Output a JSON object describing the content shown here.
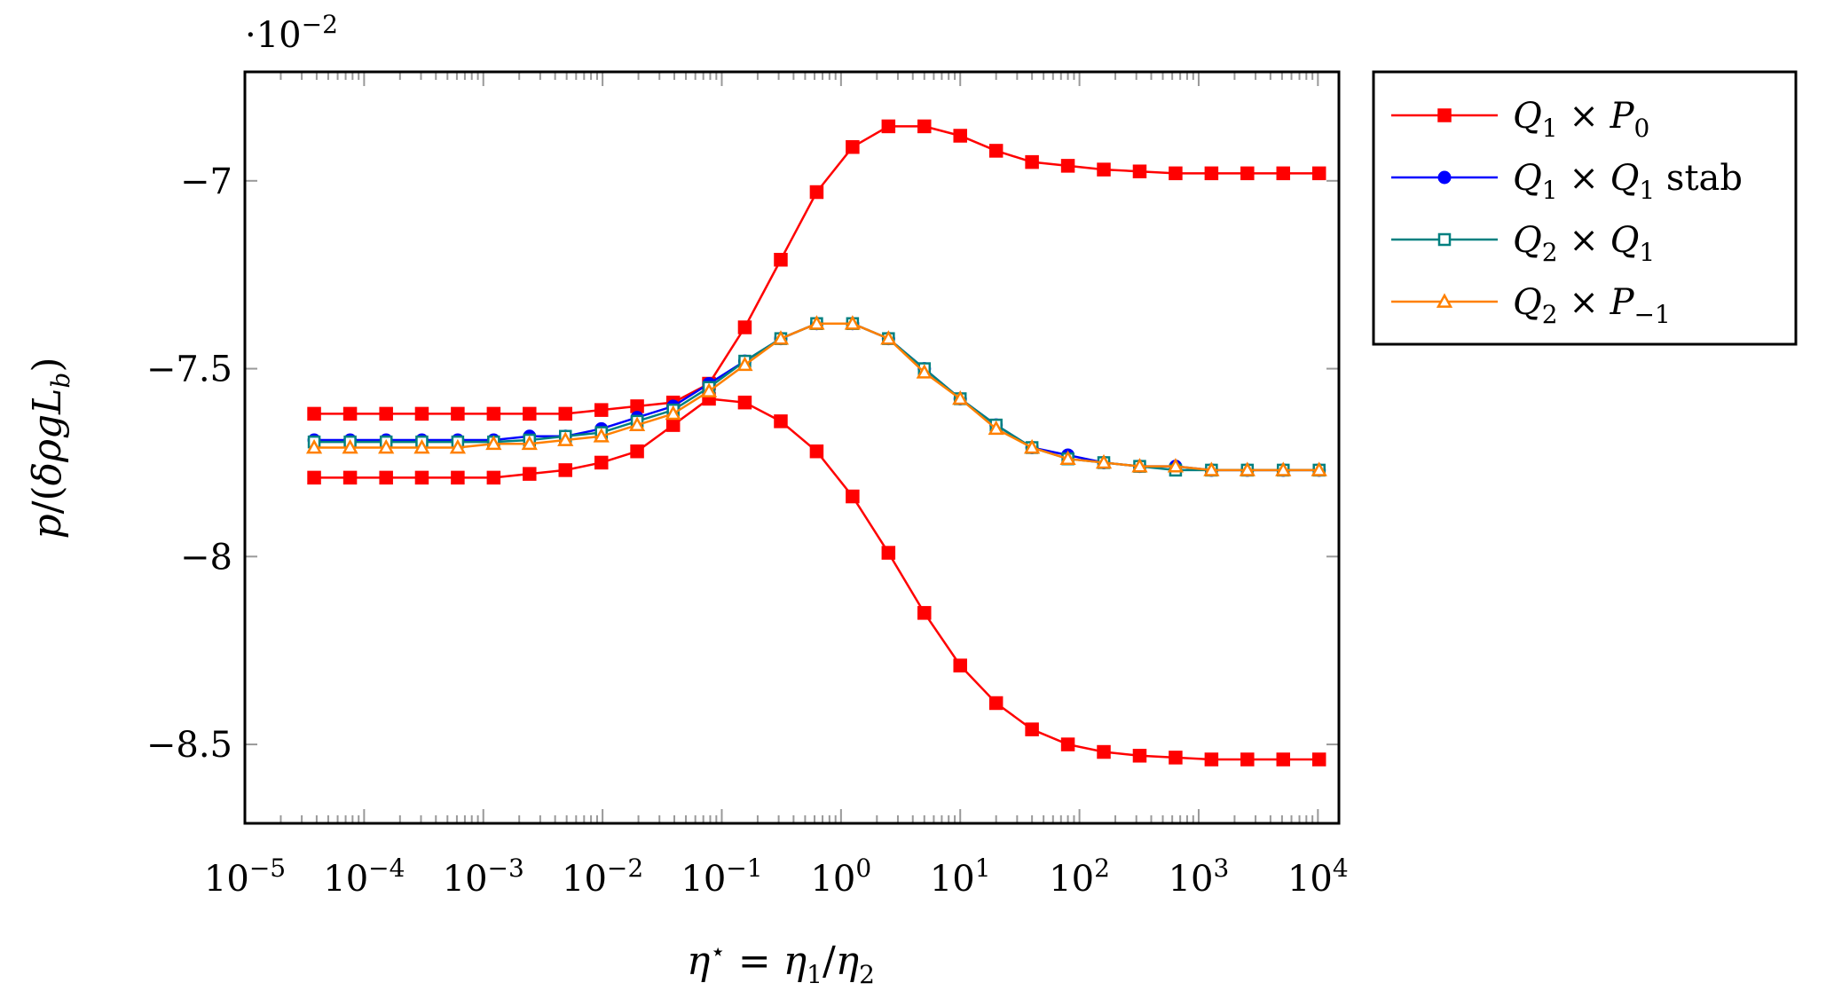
{
  "chart_data": {
    "type": "line",
    "xscale": "log",
    "xlim": [
      1e-05,
      15000
    ],
    "ylim": [
      -0.0871,
      -0.0671
    ],
    "y_multiplier_label": "·10",
    "y_multiplier_exponent": "−2",
    "xlabel": "η⋆ = η1/η2",
    "ylabel": "p/(δρgLb)",
    "grid": false,
    "legend_position": "outside-right",
    "x_ticks": [
      {
        "value": 1e-05,
        "base": "10",
        "exp": "−5"
      },
      {
        "value": 0.0001,
        "base": "10",
        "exp": "−4"
      },
      {
        "value": 0.001,
        "base": "10",
        "exp": "−3"
      },
      {
        "value": 0.01,
        "base": "10",
        "exp": "−2"
      },
      {
        "value": 0.1,
        "base": "10",
        "exp": "−1"
      },
      {
        "value": 1,
        "base": "10",
        "exp": "0"
      },
      {
        "value": 10,
        "base": "10",
        "exp": "1"
      },
      {
        "value": 100,
        "base": "10",
        "exp": "2"
      },
      {
        "value": 1000,
        "base": "10",
        "exp": "3"
      },
      {
        "value": 10000,
        "base": "10",
        "exp": "4"
      }
    ],
    "y_ticks": [
      {
        "value": -0.07,
        "label": "−7"
      },
      {
        "value": -0.075,
        "label": "−7.5"
      },
      {
        "value": -0.08,
        "label": "−8"
      },
      {
        "value": -0.085,
        "label": "−8.5"
      }
    ],
    "x": [
      3.81e-05,
      7.63e-05,
      0.000153,
      0.000305,
      0.00061,
      0.00122,
      0.00244,
      0.00488,
      0.00977,
      0.0195,
      0.0391,
      0.0781,
      0.156,
      0.3125,
      0.625,
      1.25,
      2.5,
      5,
      10,
      20,
      40,
      80,
      160,
      320,
      640,
      1280,
      2560,
      5120,
      10240
    ],
    "series": [
      {
        "name": "Q1 × P0",
        "name_parts": {
          "a": "Q",
          "a_sub": "1",
          "b": "P",
          "b_sub": "0",
          "suffix": ""
        },
        "color": "#ff0000",
        "marker": "square-filled",
        "values": [
          -0.0762,
          -0.0762,
          -0.0762,
          -0.0762,
          -0.0762,
          -0.0762,
          -0.0762,
          -0.0762,
          -0.0761,
          -0.076,
          -0.0759,
          -0.0754,
          -0.0739,
          -0.0721,
          -0.0703,
          -0.0691,
          -0.06855,
          -0.06855,
          -0.0688,
          -0.0692,
          -0.0695,
          -0.0696,
          -0.0697,
          -0.06975,
          -0.0698,
          -0.0698,
          -0.0698,
          -0.0698,
          -0.0698
        ]
      },
      {
        "name": "Q1 × P0",
        "name_parts": {
          "a": "Q",
          "a_sub": "1",
          "b": "P",
          "b_sub": "0",
          "suffix": ""
        },
        "legend": false,
        "color": "#ff0000",
        "marker": "square-filled",
        "values": [
          -0.0779,
          -0.0779,
          -0.0779,
          -0.0779,
          -0.0779,
          -0.0779,
          -0.0778,
          -0.0777,
          -0.0775,
          -0.0772,
          -0.0765,
          -0.0758,
          -0.0759,
          -0.0764,
          -0.0772,
          -0.0784,
          -0.0799,
          -0.0815,
          -0.0829,
          -0.0839,
          -0.0846,
          -0.085,
          -0.0852,
          -0.0853,
          -0.08535,
          -0.0854,
          -0.0854,
          -0.0854,
          -0.0854
        ]
      },
      {
        "name": "Q1 × Q1 stab",
        "name_parts": {
          "a": "Q",
          "a_sub": "1",
          "b": "Q",
          "b_sub": "1",
          "suffix": "stab"
        },
        "color": "#0000ff",
        "marker": "circle-filled",
        "values": [
          -0.0769,
          -0.0769,
          -0.0769,
          -0.0769,
          -0.0769,
          -0.0769,
          -0.0768,
          -0.0768,
          -0.0766,
          -0.0763,
          -0.076,
          -0.0754,
          -0.0748,
          -0.0742,
          -0.0738,
          -0.0738,
          -0.0742,
          -0.075,
          -0.0758,
          -0.0765,
          -0.0771,
          -0.0773,
          -0.0775,
          -0.0776,
          -0.0776,
          -0.0777,
          -0.0777,
          -0.0777,
          -0.0777
        ]
      },
      {
        "name": "Q2 × Q1",
        "name_parts": {
          "a": "Q",
          "a_sub": "2",
          "b": "Q",
          "b_sub": "1",
          "suffix": ""
        },
        "color": "#008080",
        "marker": "square-open",
        "values": [
          -0.07695,
          -0.07695,
          -0.07695,
          -0.07695,
          -0.07695,
          -0.07695,
          -0.0769,
          -0.0768,
          -0.0767,
          -0.0764,
          -0.0761,
          -0.0755,
          -0.0748,
          -0.0742,
          -0.0738,
          -0.0738,
          -0.0742,
          -0.075,
          -0.0758,
          -0.0765,
          -0.0771,
          -0.0774,
          -0.0775,
          -0.0776,
          -0.0777,
          -0.0777,
          -0.0777,
          -0.0777,
          -0.0777
        ]
      },
      {
        "name": "Q2 × P−1",
        "name_parts": {
          "a": "Q",
          "a_sub": "2",
          "b": "P",
          "b_sub": "−1",
          "suffix": ""
        },
        "color": "#ff8000",
        "marker": "triangle-open",
        "values": [
          -0.0771,
          -0.0771,
          -0.0771,
          -0.0771,
          -0.0771,
          -0.077,
          -0.077,
          -0.0769,
          -0.0768,
          -0.0765,
          -0.0762,
          -0.0756,
          -0.0749,
          -0.0742,
          -0.0738,
          -0.0738,
          -0.0742,
          -0.0751,
          -0.0758,
          -0.0766,
          -0.0771,
          -0.0774,
          -0.0775,
          -0.0776,
          -0.0776,
          -0.0777,
          -0.0777,
          -0.0777,
          -0.0777
        ]
      }
    ]
  }
}
